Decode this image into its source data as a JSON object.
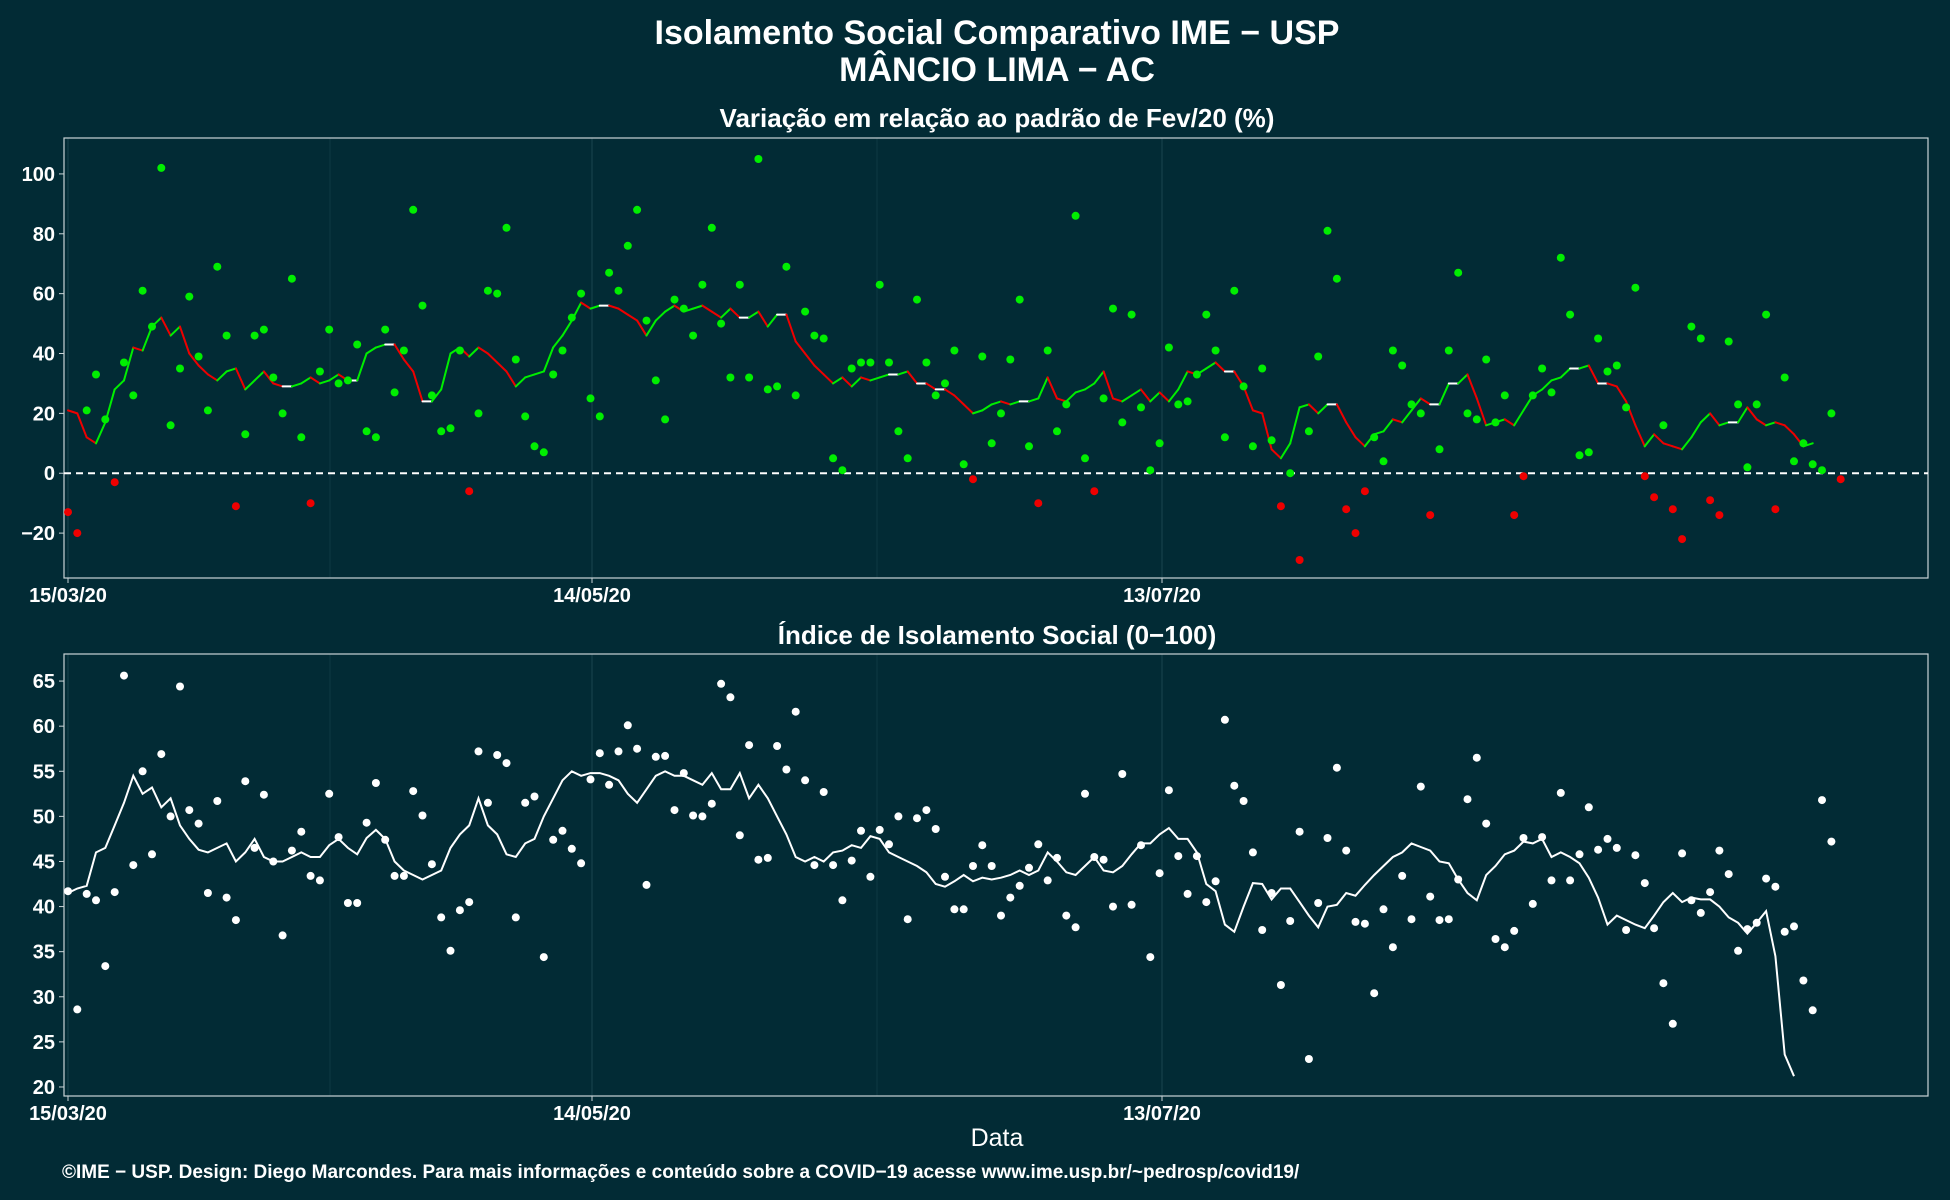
{
  "header": {
    "title_line1": "Isolamento Social Comparativo IME − USP",
    "title_line2": "MÂNCIO LIMA − AC"
  },
  "footer": {
    "xlabel": "Data",
    "caption": "©IME − USP. Design: Diego Marcondes. Para mais informações e conteúdo sobre a COVID−19 acesse www.ime.usp.br/~pedrosp/covid19/"
  },
  "colors": {
    "background": "#022b35",
    "positive": "#00ee00",
    "negative": "#ee0000",
    "neutral": "#ffffff"
  },
  "chart_data": [
    {
      "type": "scatter",
      "title": "Variação em relação ao padrão de Fev/20 (%)",
      "xlabel": "",
      "ylabel": "",
      "x_start": "15/03/20",
      "x_ticks": [
        "15/03/20",
        "14/05/20",
        "13/07/20"
      ],
      "y_ticks": [
        "100",
        "80",
        "60",
        "40",
        "20",
        "0",
        "−20"
      ],
      "ylim": [
        -35,
        112
      ],
      "reference_line": 0,
      "grid": true,
      "points": [
        -13,
        -20,
        21,
        33,
        18,
        -3,
        37,
        26,
        61,
        49,
        102,
        16,
        35,
        59,
        39,
        21,
        69,
        46,
        -11,
        13,
        46,
        48,
        32,
        20,
        65,
        12,
        -10,
        34,
        48,
        30,
        31,
        43,
        14,
        12,
        48,
        27,
        41,
        88,
        56,
        26,
        14,
        15,
        41,
        -6,
        20,
        61,
        60,
        82,
        38,
        19,
        9,
        7,
        33,
        41,
        52,
        60,
        25,
        19,
        67,
        61,
        76,
        88,
        51,
        31,
        18,
        58,
        55,
        46,
        63,
        82,
        50,
        32,
        63,
        32,
        105,
        28,
        29,
        69,
        26,
        54,
        46,
        45,
        5,
        1,
        35,
        37,
        37,
        63,
        37,
        14,
        5,
        58,
        37,
        26,
        30,
        41,
        3,
        -2,
        39,
        10,
        20,
        38,
        58,
        9,
        -10,
        41,
        14,
        23,
        86,
        5,
        -6,
        25,
        55,
        17,
        53,
        22,
        1,
        10,
        42,
        23,
        24,
        33,
        53,
        41,
        12,
        61,
        29,
        9,
        35,
        11,
        -11,
        0,
        -29,
        14,
        39,
        81,
        65,
        -12,
        -20,
        -6,
        12,
        4,
        41,
        36,
        23,
        20,
        -14,
        8,
        41,
        67,
        20,
        18,
        38,
        17,
        26,
        -14,
        -1,
        26,
        35,
        27,
        72,
        53,
        6,
        7,
        45,
        34,
        36,
        22,
        62,
        -1,
        -8,
        16,
        -12,
        -22,
        49,
        45,
        -9,
        -14,
        44,
        23,
        2,
        23,
        53,
        -12,
        32,
        4,
        10,
        3,
        1,
        20,
        -2
      ],
      "trend": [
        21,
        20,
        12,
        10,
        17,
        28,
        31,
        42,
        41,
        49,
        52,
        46,
        49,
        40,
        36,
        33,
        31,
        34,
        35,
        28,
        31,
        34,
        30,
        29,
        29,
        30,
        32,
        30,
        31,
        33,
        31,
        31,
        40,
        42,
        43,
        43,
        38,
        34,
        24,
        24,
        28,
        40,
        42,
        39,
        42,
        40,
        37,
        34,
        29,
        32,
        33,
        34,
        42,
        46,
        51,
        57,
        55,
        56,
        56,
        55,
        53,
        51,
        46,
        51,
        54,
        56,
        54,
        55,
        56,
        54,
        52,
        55,
        52,
        52,
        54,
        49,
        53,
        53,
        44,
        40,
        36,
        33,
        30,
        32,
        29,
        32,
        31,
        32,
        33,
        33,
        34,
        30,
        30,
        28,
        28,
        26,
        23,
        20,
        21,
        23,
        24,
        23,
        24,
        24,
        25,
        32,
        25,
        24,
        27,
        28,
        30,
        34,
        25,
        24,
        26,
        28,
        24,
        27,
        24,
        28,
        34,
        33,
        35,
        37,
        34,
        34,
        29,
        21,
        20,
        8,
        5,
        10,
        22,
        23,
        20,
        23,
        23,
        17,
        12,
        9,
        13,
        14,
        18,
        17,
        21,
        25,
        23,
        23,
        30,
        30,
        33,
        25,
        16,
        17,
        18,
        16,
        21,
        26,
        28,
        31,
        32,
        35,
        35,
        36,
        30,
        30,
        29,
        24,
        16,
        9,
        13,
        10,
        9,
        8,
        12,
        17,
        20,
        16,
        17,
        17,
        22,
        18,
        16,
        17,
        16,
        13,
        9,
        10
      ],
      "trend_colors": [
        "w",
        "w",
        "w",
        "w",
        "w",
        "w",
        "w",
        "w",
        "w",
        "w",
        "w",
        "w",
        "w",
        "w",
        "w",
        "w",
        "w",
        "w",
        "w",
        "w",
        "w",
        "w",
        "w",
        "w",
        "w",
        "w",
        "w",
        "w",
        "w",
        "w",
        "w",
        "w",
        "w",
        "w",
        "w",
        "w",
        "w",
        "w",
        "w",
        "w",
        "w",
        "w",
        "w",
        "w",
        "w",
        "w",
        "w",
        "w",
        "w",
        "w",
        "w",
        "w",
        "w",
        "w",
        "w",
        "w",
        "w",
        "w",
        "w",
        "w",
        "w",
        "w",
        "w",
        "w",
        "w",
        "w",
        "w",
        "w",
        "w",
        "w",
        "w",
        "w",
        "w",
        "w",
        "w",
        "w",
        "w",
        "w",
        "w",
        "w",
        "w",
        "w",
        "w",
        "w",
        "w",
        "w",
        "w",
        "w",
        "w",
        "w",
        "w",
        "w",
        "w",
        "w",
        "w",
        "w",
        "w",
        "w",
        "w",
        "w",
        "w",
        "w",
        "w",
        "w",
        "w",
        "w",
        "w",
        "w",
        "w",
        "w",
        "w",
        "w",
        "w",
        "w",
        "w",
        "w",
        "w",
        "w",
        "w",
        "w",
        "w",
        "w",
        "w",
        "w",
        "w",
        "w",
        "w",
        "w",
        "w",
        "w",
        "w",
        "w",
        "w",
        "w",
        "w",
        "w",
        "w",
        "w",
        "w",
        "w",
        "w",
        "w",
        "w",
        "w",
        "w",
        "w",
        "w",
        "w",
        "w",
        "w",
        "w",
        "w",
        "w",
        "w",
        "w",
        "w",
        "w",
        "w",
        "w",
        "w",
        "w",
        "w",
        "w",
        "w",
        "w",
        "w",
        "w",
        "w",
        "w",
        "w",
        "w",
        "w",
        "w",
        "w",
        "w",
        "w",
        "w",
        "w",
        "w",
        "w",
        "w",
        "w",
        "w",
        "w",
        "w",
        "w",
        "w",
        "w"
      ]
    },
    {
      "type": "scatter",
      "title": "Índice de Isolamento Social (0−100)",
      "xlabel": "Data",
      "ylabel": "",
      "x_start": "15/03/20",
      "x_ticks": [
        "15/03/20",
        "14/05/20",
        "13/07/20"
      ],
      "y_ticks": [
        "65",
        "60",
        "55",
        "50",
        "45",
        "40",
        "35",
        "30",
        "25",
        "20"
      ],
      "ylim": [
        19,
        68
      ],
      "grid": true,
      "points": [
        41.7,
        28.6,
        41.4,
        40.7,
        33.4,
        41.6,
        65.6,
        44.6,
        55.0,
        45.8,
        56.9,
        50.0,
        64.4,
        50.7,
        49.2,
        41.5,
        51.7,
        41.0,
        38.5,
        53.9,
        46.5,
        52.4,
        45.0,
        36.8,
        46.2,
        48.3,
        43.4,
        42.9,
        52.5,
        47.7,
        40.4,
        40.4,
        49.3,
        53.7,
        47.4,
        43.4,
        43.4,
        52.8,
        50.1,
        44.7,
        38.8,
        35.1,
        39.6,
        40.5,
        57.2,
        51.5,
        56.8,
        55.9,
        38.8,
        51.5,
        52.2,
        34.4,
        47.4,
        48.4,
        46.4,
        44.8,
        54.1,
        57.0,
        53.5,
        57.2,
        60.1,
        57.5,
        42.4,
        56.6,
        56.7,
        50.7,
        54.8,
        50.1,
        50.0,
        51.4,
        64.7,
        63.2,
        47.9,
        57.9,
        45.2,
        45.4,
        57.8,
        55.2,
        61.6,
        54.0,
        44.6,
        52.7,
        44.6,
        40.7,
        45.1,
        48.4,
        43.3,
        48.5,
        46.9,
        50.0,
        38.6,
        49.8,
        50.7,
        48.6,
        43.3,
        39.7,
        39.7,
        44.5,
        46.8,
        44.5,
        39.0,
        41.0,
        42.3,
        44.3,
        46.9,
        42.9,
        45.4,
        39.0,
        37.7,
        52.5,
        45.5,
        45.2,
        40.0,
        54.7,
        40.2,
        46.8,
        34.4,
        43.7,
        52.9,
        45.6,
        41.4,
        45.6,
        40.5,
        42.8,
        60.7,
        53.4,
        51.7,
        46.0,
        37.4,
        41.5,
        31.3,
        38.4,
        48.3,
        23.1,
        40.4,
        47.6,
        55.4,
        46.2,
        38.3,
        38.1,
        30.4,
        39.7,
        35.5,
        43.4,
        38.6,
        53.3,
        41.1,
        38.5,
        38.6,
        43.0,
        51.9,
        56.5,
        49.2,
        36.4,
        35.5,
        37.3,
        47.6,
        40.3,
        47.7,
        42.9,
        52.6,
        42.9,
        45.8,
        51.0,
        46.3,
        47.5,
        46.5,
        37.4,
        45.7,
        42.6,
        37.6,
        31.5,
        27.0,
        45.9,
        40.7,
        39.3,
        41.6,
        46.2,
        43.6,
        35.1,
        37.5,
        38.2,
        43.1,
        42.2,
        37.2,
        37.8,
        31.8,
        28.5,
        51.8,
        47.2
      ],
      "trend": [
        41.5,
        42.0,
        42.3,
        46.0,
        46.5,
        49.0,
        51.5,
        54.5,
        52.5,
        53.2,
        51.0,
        52.0,
        49.0,
        47.5,
        46.3,
        46.0,
        46.5,
        47.0,
        45.0,
        46.0,
        47.5,
        45.5,
        45.0,
        45.0,
        45.5,
        46.0,
        45.5,
        45.5,
        46.8,
        47.5,
        46.5,
        45.8,
        47.6,
        48.5,
        47.5,
        45.0,
        44.0,
        43.5,
        43.0,
        43.5,
        44.0,
        46.5,
        48.0,
        49.0,
        52.0,
        49.0,
        48.0,
        45.8,
        45.5,
        47.0,
        47.5,
        50.0,
        52.0,
        54.0,
        55.0,
        54.5,
        54.8,
        54.8,
        54.5,
        54.0,
        52.5,
        51.5,
        53.0,
        54.5,
        55.0,
        54.5,
        54.5,
        54.0,
        53.5,
        54.8,
        53.0,
        53.0,
        54.8,
        52.0,
        53.5,
        52.0,
        50.0,
        48.0,
        45.5,
        45.0,
        45.5,
        45.0,
        46.0,
        46.2,
        46.8,
        46.5,
        47.8,
        47.5,
        46.0,
        45.5,
        45.0,
        44.5,
        43.8,
        42.5,
        42.2,
        42.8,
        43.5,
        42.8,
        43.2,
        43.0,
        43.2,
        43.5,
        44.0,
        43.5,
        44.0,
        46.0,
        45.0,
        43.8,
        43.5,
        44.5,
        45.5,
        44.0,
        43.8,
        44.5,
        45.8,
        47.0,
        47.0,
        48.0,
        48.7,
        47.5,
        47.5,
        46.0,
        42.5,
        41.7,
        38.0,
        37.2,
        40.0,
        42.6,
        42.5,
        40.8,
        42.0,
        42.0,
        40.5,
        39.0,
        37.7,
        40.0,
        40.2,
        41.5,
        41.2,
        42.4,
        43.5,
        44.5,
        45.5,
        46.0,
        47.0,
        46.6,
        46.2,
        45.0,
        44.8,
        43.0,
        41.5,
        40.7,
        43.5,
        44.5,
        45.8,
        46.2,
        47.2,
        47.0,
        47.5,
        45.5,
        46.0,
        45.5,
        44.8,
        43.2,
        41.0,
        38.0,
        39.0,
        38.5,
        38.0,
        37.6,
        39.0,
        40.5,
        41.5,
        40.5,
        41.0,
        40.8,
        40.8,
        40.0,
        38.8,
        38.2,
        37.0,
        38.2,
        39.5,
        34.5,
        23.6,
        21.2
      ]
    }
  ]
}
